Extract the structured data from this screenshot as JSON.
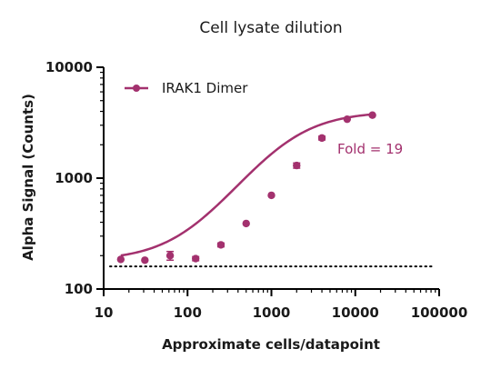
{
  "chart_data": {
    "type": "scatter",
    "title": "Cell lysate dilution",
    "xlabel": "Approximate cells/datapoint",
    "ylabel": "Alpha Signal (Counts)",
    "x_scale": "log",
    "y_scale": "log",
    "xlim": [
      10,
      100000
    ],
    "ylim": [
      100,
      10000
    ],
    "x_ticks": [
      10,
      100,
      1000,
      10000,
      100000
    ],
    "x_tick_labels": [
      "10",
      "100",
      "1000",
      "10000",
      "100000"
    ],
    "y_ticks": [
      100,
      1000,
      10000
    ],
    "y_tick_labels": [
      "100",
      "1000",
      "10000"
    ],
    "legend_position": "top-left",
    "series": [
      {
        "name": "IRAK1 Dimer",
        "color": "#a3316e",
        "x": [
          16,
          31,
          62,
          125,
          250,
          500,
          1000,
          2000,
          4000,
          8000,
          16000
        ],
        "y": [
          185,
          182,
          200,
          188,
          250,
          390,
          700,
          1300,
          2300,
          3400,
          3700
        ],
        "y_error": [
          0,
          0,
          18,
          8,
          10,
          0,
          0,
          70,
          90,
          0,
          0
        ],
        "fit_curve": {
          "type": "sigmoidal",
          "bottom": 180,
          "top": 4000,
          "ec50": 1500,
          "hill": 1.15
        }
      }
    ],
    "reference_line": {
      "y": 160,
      "style": "dotted"
    },
    "annotation": {
      "text": "Fold = 19",
      "color": "#a3316e"
    }
  }
}
